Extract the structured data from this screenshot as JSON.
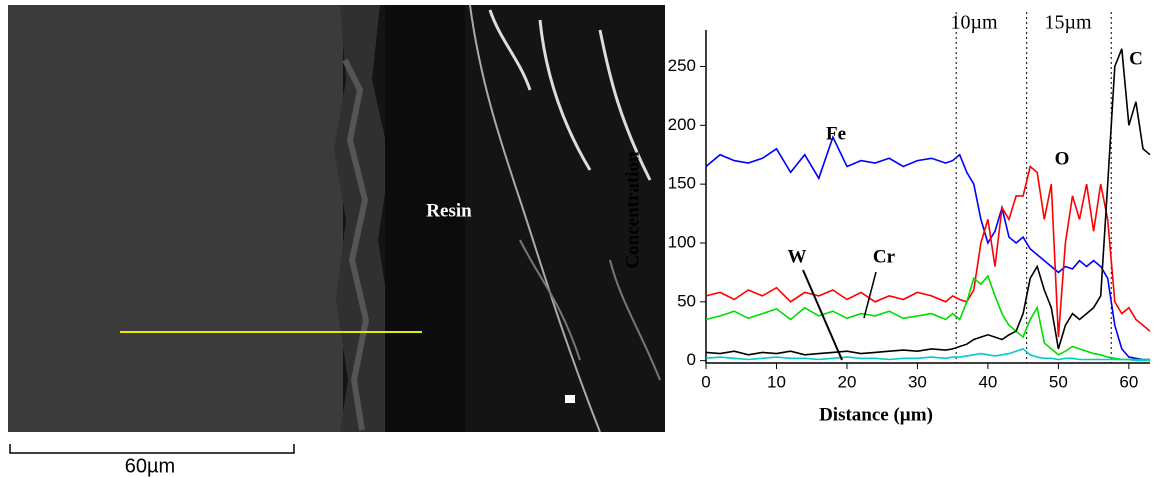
{
  "image": {
    "label": "Resin",
    "scale_label": "60µm"
  },
  "chart_data": {
    "type": "line",
    "xlabel": "Distance (µm)",
    "ylabel": "Concentration",
    "annotations": [
      "10µm",
      "15µm"
    ],
    "vlines": [
      35.5,
      45.5,
      57.5
    ],
    "x": [
      0,
      2,
      4,
      6,
      8,
      10,
      12,
      14,
      16,
      18,
      20,
      22,
      24,
      26,
      28,
      30,
      32,
      34,
      35,
      36,
      37,
      38,
      39,
      40,
      41,
      42,
      43,
      44,
      45,
      46,
      47,
      48,
      49,
      50,
      51,
      52,
      53,
      54,
      55,
      56,
      57,
      58,
      59,
      60,
      61,
      62,
      63
    ],
    "series": [
      {
        "name": "Fe",
        "color": "#0000ff",
        "values": [
          165,
          175,
          170,
          168,
          172,
          180,
          160,
          175,
          155,
          190,
          165,
          170,
          168,
          172,
          165,
          170,
          172,
          168,
          170,
          175,
          160,
          150,
          120,
          100,
          110,
          130,
          105,
          100,
          105,
          95,
          90,
          85,
          80,
          75,
          80,
          78,
          85,
          80,
          85,
          80,
          70,
          30,
          10,
          3,
          2,
          1,
          1
        ]
      },
      {
        "name": "O",
        "color": "#ff0000",
        "values": [
          55,
          58,
          52,
          60,
          55,
          62,
          50,
          58,
          55,
          60,
          52,
          58,
          50,
          55,
          52,
          58,
          55,
          50,
          55,
          52,
          50,
          60,
          100,
          120,
          80,
          130,
          120,
          140,
          140,
          165,
          160,
          120,
          150,
          20,
          100,
          140,
          120,
          150,
          110,
          150,
          120,
          50,
          40,
          45,
          35,
          30,
          25
        ]
      },
      {
        "name": "Cr",
        "color": "#00dd00",
        "values": [
          35,
          38,
          42,
          36,
          40,
          44,
          35,
          45,
          38,
          42,
          36,
          40,
          38,
          42,
          36,
          38,
          40,
          35,
          40,
          35,
          50,
          70,
          65,
          72,
          55,
          40,
          30,
          25,
          20,
          35,
          45,
          15,
          10,
          5,
          8,
          12,
          10,
          8,
          6,
          5,
          3,
          2,
          1,
          1,
          1,
          1,
          1
        ]
      },
      {
        "name": "C",
        "color": "#000000",
        "values": [
          7,
          6,
          8,
          5,
          7,
          6,
          8,
          5,
          6,
          7,
          8,
          6,
          7,
          8,
          9,
          8,
          10,
          9,
          10,
          12,
          14,
          18,
          20,
          22,
          20,
          18,
          22,
          25,
          40,
          70,
          80,
          60,
          45,
          10,
          30,
          40,
          35,
          40,
          45,
          55,
          150,
          250,
          265,
          200,
          220,
          180,
          175
        ]
      },
      {
        "name": "W",
        "color": "#00cccc",
        "values": [
          2,
          3,
          2,
          1,
          2,
          3,
          2,
          2,
          1,
          2,
          3,
          2,
          2,
          1,
          2,
          2,
          3,
          2,
          3,
          3,
          4,
          5,
          6,
          5,
          4,
          5,
          6,
          8,
          10,
          5,
          3,
          2,
          2,
          1,
          2,
          2,
          1,
          1,
          1,
          1,
          1,
          1,
          1,
          1,
          0,
          0,
          0
        ]
      }
    ],
    "xlim": [
      0,
      63
    ],
    "ylim": [
      -2,
      281
    ],
    "xticks": [
      0,
      10,
      20,
      30,
      40,
      50,
      60
    ],
    "yticks": [
      0,
      50,
      100,
      150,
      200,
      250
    ]
  }
}
